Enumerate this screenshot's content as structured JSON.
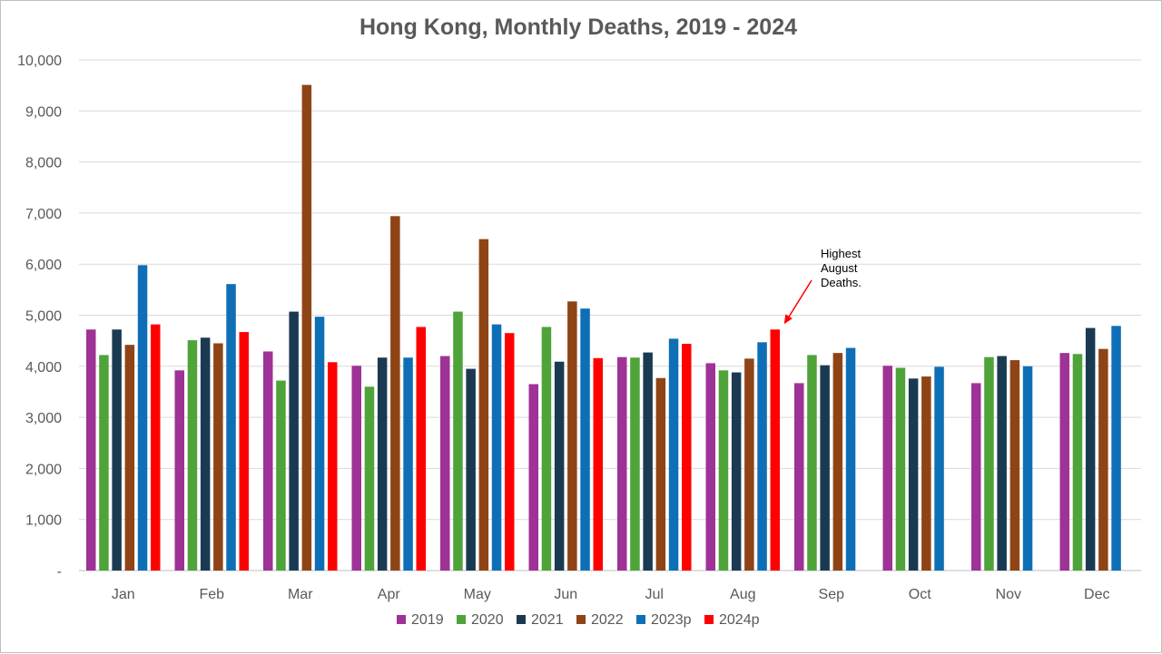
{
  "chart_data": {
    "type": "bar",
    "title": "Hong Kong, Monthly Deaths, 2019 - 2024",
    "categories": [
      "Jan",
      "Feb",
      "Mar",
      "Apr",
      "May",
      "Jun",
      "Jul",
      "Aug",
      "Sep",
      "Oct",
      "Nov",
      "Dec"
    ],
    "ylim": [
      0,
      10000
    ],
    "yticks": [
      0,
      1000,
      2000,
      3000,
      4000,
      5000,
      6000,
      7000,
      8000,
      9000,
      10000
    ],
    "ytick_labels": [
      "-",
      "1,000",
      "2,000",
      "3,000",
      "4,000",
      "5,000",
      "6,000",
      "7,000",
      "8,000",
      "9,000",
      "10,000"
    ],
    "grid": true,
    "legend_position": "bottom",
    "series": [
      {
        "name": "2019",
        "color": "#9e3296",
        "values": [
          4720,
          3920,
          4290,
          4010,
          4200,
          3650,
          4180,
          4060,
          3670,
          4010,
          3670,
          4260
        ]
      },
      {
        "name": "2020",
        "color": "#4ea339",
        "values": [
          4220,
          4510,
          3720,
          3600,
          5070,
          4770,
          4170,
          3920,
          4220,
          3970,
          4180,
          4240
        ]
      },
      {
        "name": "2021",
        "color": "#1a3a52",
        "values": [
          4720,
          4560,
          5070,
          4170,
          3950,
          4090,
          4270,
          3880,
          4020,
          3760,
          4200,
          4750
        ]
      },
      {
        "name": "2022",
        "color": "#8f4416",
        "values": [
          4420,
          4450,
          9510,
          6940,
          6490,
          5270,
          3770,
          4150,
          4260,
          3800,
          4120,
          4340
        ]
      },
      {
        "name": "2023p",
        "color": "#0f6fb6",
        "values": [
          5980,
          5610,
          4970,
          4170,
          4820,
          5130,
          4540,
          4470,
          4360,
          3990,
          4000,
          4790
        ]
      },
      {
        "name": "2024p",
        "color": "#ff0000",
        "values": [
          4820,
          4670,
          4080,
          4770,
          4650,
          4160,
          4440,
          4720,
          null,
          null,
          null,
          null
        ]
      }
    ],
    "annotations": [
      {
        "lines": [
          "Highest",
          "August",
          "Deaths."
        ],
        "target_category": "Aug",
        "target_series": "2024p"
      }
    ]
  }
}
